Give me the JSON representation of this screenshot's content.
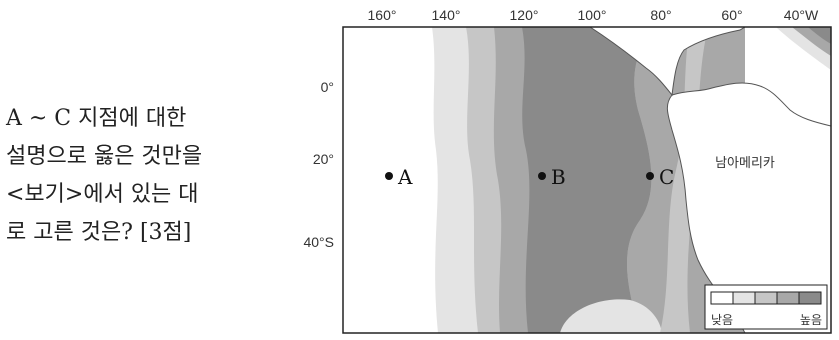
{
  "question": {
    "text": "A ~ C 지점에  대한\n설명으로 옳은 것만을\n<보기>에서 있는 대\n로 고른 것은? [3점]"
  },
  "map": {
    "longitude_labels": [
      "160°",
      "140°",
      "120°",
      "100°",
      "80°",
      "60°",
      "40°W"
    ],
    "latitude_labels": [
      "0°",
      "20°",
      "40°S"
    ],
    "continent_label": "남아메리카",
    "points": [
      {
        "label": "A"
      },
      {
        "label": "B"
      },
      {
        "label": "C"
      }
    ],
    "legend": {
      "low_label": "낮음",
      "high_label": "높음",
      "colors": [
        "#ffffff",
        "#e4e4e4",
        "#c6c6c6",
        "#a8a8a8",
        "#8a8a8a"
      ]
    },
    "colors": {
      "level1": "#e4e4e4",
      "level2": "#c6c6c6",
      "level3": "#a8a8a8",
      "level4": "#8a8a8a",
      "land": "#ffffff",
      "border": "#222222"
    }
  }
}
